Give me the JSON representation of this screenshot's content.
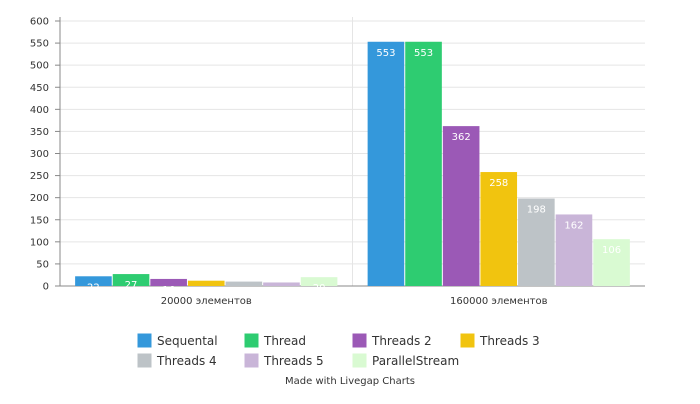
{
  "chart_data": {
    "type": "bar",
    "title": "",
    "xlabel": "",
    "ylabel": "",
    "categories": [
      "20000 элементов",
      "160000 элементов"
    ],
    "ylim": [
      0,
      600
    ],
    "yticks": [
      0,
      50,
      100,
      150,
      200,
      250,
      300,
      350,
      400,
      450,
      500,
      550,
      600
    ],
    "grid": true,
    "legend_position": "bottom",
    "series": [
      {
        "name": "Sequental",
        "color": "#3498db",
        "values": [
          22,
          553
        ]
      },
      {
        "name": "Thread",
        "color": "#2ecc71",
        "values": [
          27,
          553
        ]
      },
      {
        "name": "Threads 2",
        "color": "#9b59b6",
        "values": [
          16,
          362
        ]
      },
      {
        "name": "Threads 3",
        "color": "#f1c40f",
        "values": [
          12,
          258
        ]
      },
      {
        "name": "Threads 4",
        "color": "#bdc3c7",
        "values": [
          10,
          198
        ]
      },
      {
        "name": "Threads 5",
        "color": "#c9b5d8",
        "values": [
          8,
          162
        ]
      },
      {
        "name": "ParallelStream",
        "color": "#d9fad2",
        "values": [
          20,
          106
        ]
      }
    ]
  },
  "footer": {
    "credit": "Made with Livegap Charts"
  }
}
